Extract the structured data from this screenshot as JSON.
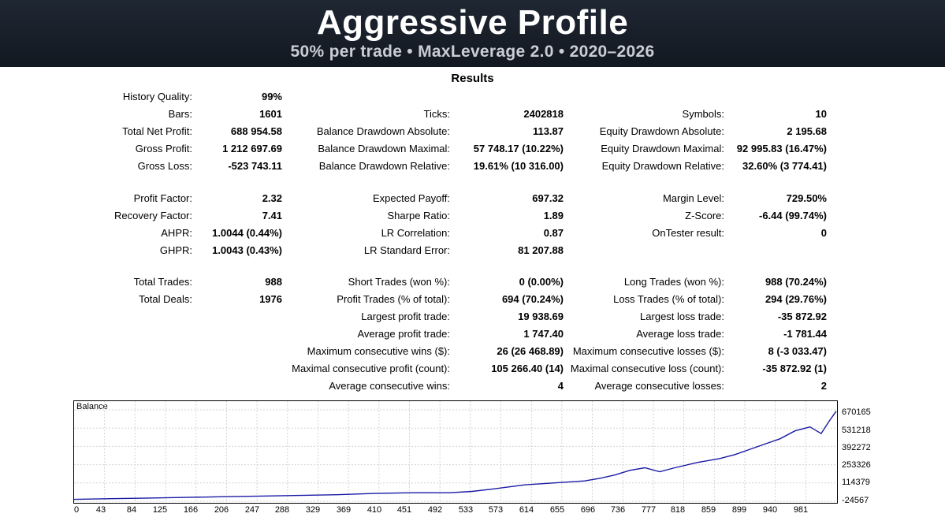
{
  "header": {
    "title": "Aggressive Profile",
    "subtitle": "50% per trade • MaxLeverage 2.0 • 2020–2026"
  },
  "results_title": "Results",
  "col1": [
    {
      "label": "History Quality:",
      "value": "99%"
    },
    {
      "label": "Bars:",
      "value": "1601"
    },
    {
      "label": "Total Net Profit:",
      "value": "688 954.58"
    },
    {
      "label": "Gross Profit:",
      "value": "1 212 697.69"
    },
    {
      "label": "Gross Loss:",
      "value": "-523 743.11"
    },
    {
      "label": "Profit Factor:",
      "value": "2.32"
    },
    {
      "label": "Recovery Factor:",
      "value": "7.41"
    },
    {
      "label": "AHPR:",
      "value": "1.0044 (0.44%)"
    },
    {
      "label": "GHPR:",
      "value": "1.0043 (0.43%)"
    },
    {
      "label": "Total Trades:",
      "value": "988"
    },
    {
      "label": "Total Deals:",
      "value": "1976"
    }
  ],
  "col2": [
    {
      "label": "Ticks:",
      "value": "2402818"
    },
    {
      "label": "Balance Drawdown Absolute:",
      "value": "113.87"
    },
    {
      "label": "Balance Drawdown Maximal:",
      "value": "57 748.17 (10.22%)"
    },
    {
      "label": "Balance Drawdown Relative:",
      "value": "19.61% (10 316.00)"
    },
    {
      "label": "Expected Payoff:",
      "value": "697.32"
    },
    {
      "label": "Sharpe Ratio:",
      "value": "1.89"
    },
    {
      "label": "LR Correlation:",
      "value": "0.87"
    },
    {
      "label": "LR Standard Error:",
      "value": "81 207.88"
    },
    {
      "label": "Short Trades (won %):",
      "value": "0 (0.00%)"
    },
    {
      "label": "Profit Trades (% of total):",
      "value": "694 (70.24%)"
    },
    {
      "label": "Largest profit trade:",
      "value": "19 938.69"
    },
    {
      "label": "Average profit trade:",
      "value": "1 747.40"
    },
    {
      "label": "Maximum consecutive wins ($):",
      "value": "26 (26 468.89)"
    },
    {
      "label": "Maximal consecutive profit (count):",
      "value": "105 266.40 (14)"
    },
    {
      "label": "Average consecutive wins:",
      "value": "4"
    }
  ],
  "col3": [
    {
      "label": "Symbols:",
      "value": "10"
    },
    {
      "label": "Equity Drawdown Absolute:",
      "value": "2 195.68"
    },
    {
      "label": "Equity Drawdown Maximal:",
      "value": "92 995.83 (16.47%)"
    },
    {
      "label": "Equity Drawdown Relative:",
      "value": "32.60% (3 774.41)"
    },
    {
      "label": "Margin Level:",
      "value": "729.50%"
    },
    {
      "label": "Z-Score:",
      "value": "-6.44 (99.74%)"
    },
    {
      "label": "OnTester result:",
      "value": "0"
    },
    {
      "label": "Long Trades (won %):",
      "value": "988 (70.24%)"
    },
    {
      "label": "Loss Trades (% of total):",
      "value": "294 (29.76%)"
    },
    {
      "label": "Largest loss trade:",
      "value": "-35 872.92"
    },
    {
      "label": "Average loss trade:",
      "value": "-1 781.44"
    },
    {
      "label": "Maximum consecutive losses ($):",
      "value": "8 (-3 033.47)"
    },
    {
      "label": "Maximal consecutive loss (count):",
      "value": "-35 872.92 (1)"
    },
    {
      "label": "Average consecutive losses:",
      "value": "2"
    }
  ],
  "chart_data": {
    "type": "line",
    "title": "Balance",
    "line_color": "#1a1aa6",
    "grid": true,
    "x_ticks": [
      "0",
      "43",
      "84",
      "125",
      "166",
      "206",
      "247",
      "288",
      "329",
      "369",
      "410",
      "451",
      "492",
      "533",
      "573",
      "614",
      "655",
      "696",
      "736",
      "777",
      "818",
      "859",
      "899",
      "940",
      "981"
    ],
    "y_ticks": [
      "670165",
      "531218",
      "392272",
      "253326",
      "114379",
      "-24567"
    ],
    "xlim": [
      0,
      1015
    ],
    "ylim": [
      -24567,
      670165
    ],
    "series": [
      {
        "x": [
          0,
          50,
          100,
          150,
          200,
          250,
          300,
          350,
          400,
          450,
          500,
          530,
          560,
          600,
          640,
          680,
          700,
          720,
          740,
          760,
          780,
          800,
          830,
          860,
          880,
          900,
          920,
          940,
          960,
          980,
          995,
          1005,
          1015
        ],
        "y": [
          -10000,
          -5000,
          0,
          5000,
          10000,
          15000,
          20000,
          25000,
          35000,
          40000,
          40000,
          50000,
          70000,
          100000,
          115000,
          130000,
          150000,
          175000,
          210000,
          230000,
          200000,
          230000,
          270000,
          300000,
          330000,
          370000,
          410000,
          450000,
          510000,
          540000,
          490000,
          580000,
          660000
        ]
      }
    ]
  }
}
